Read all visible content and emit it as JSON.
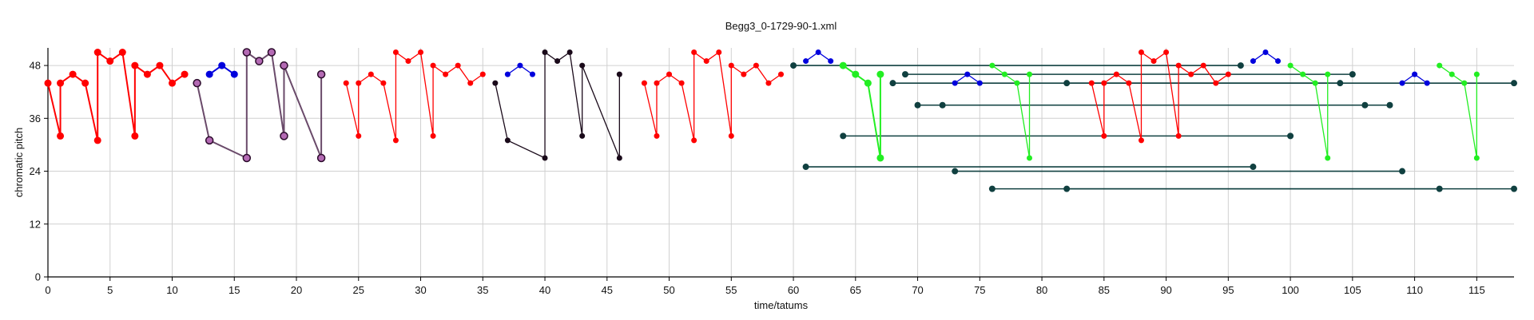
{
  "chart_data": {
    "type": "scatter",
    "title": "Begg3_0-1729-90-1.xml",
    "xlabel": "time/tatums",
    "ylabel": "chromatic pitch",
    "xlim": [
      0,
      118
    ],
    "ylim": [
      0,
      52
    ],
    "xticks": [
      0,
      5,
      10,
      15,
      20,
      25,
      30,
      35,
      40,
      45,
      50,
      55,
      60,
      65,
      70,
      75,
      80,
      85,
      90,
      95,
      100,
      105,
      110,
      115
    ],
    "yticks": [
      0,
      12,
      24,
      36,
      48
    ],
    "grid": true,
    "legend": "none",
    "colors": {
      "red": "#ff0000",
      "blue": "#0000dd",
      "purple": "#6a4a6a",
      "dark": "#1a0a1a",
      "green": "#22ee22",
      "teal": "#104040"
    },
    "series": [
      {
        "color": "red",
        "size": 9,
        "points": [
          [
            0,
            44
          ],
          [
            1,
            32
          ],
          [
            1,
            44
          ],
          [
            2,
            46
          ],
          [
            3,
            44
          ],
          [
            4,
            31
          ],
          [
            4,
            51
          ],
          [
            5,
            49
          ],
          [
            6,
            51
          ],
          [
            7,
            32
          ],
          [
            7,
            48
          ],
          [
            8,
            46
          ],
          [
            9,
            48
          ],
          [
            10,
            44
          ],
          [
            11,
            46
          ]
        ]
      },
      {
        "color": "blue",
        "size": 9,
        "points": [
          [
            13,
            46
          ],
          [
            14,
            48
          ],
          [
            15,
            46
          ]
        ]
      },
      {
        "color": "purple",
        "size": 9,
        "points": [
          [
            12,
            44
          ],
          [
            13,
            31
          ],
          [
            16,
            27
          ],
          [
            16,
            51
          ],
          [
            17,
            49
          ],
          [
            18,
            51
          ],
          [
            19,
            32
          ],
          [
            19,
            48
          ],
          [
            22,
            27
          ],
          [
            22,
            46
          ]
        ]
      },
      {
        "color": "red",
        "size": 7,
        "points": [
          [
            24,
            44
          ],
          [
            25,
            32
          ],
          [
            25,
            44
          ],
          [
            26,
            46
          ],
          [
            27,
            44
          ],
          [
            28,
            31
          ],
          [
            28,
            51
          ],
          [
            29,
            49
          ],
          [
            30,
            51
          ],
          [
            31,
            32
          ],
          [
            31,
            48
          ],
          [
            32,
            46
          ],
          [
            33,
            48
          ],
          [
            34,
            44
          ],
          [
            35,
            46
          ]
        ]
      },
      {
        "color": "blue",
        "size": 7,
        "points": [
          [
            37,
            46
          ],
          [
            38,
            48
          ],
          [
            39,
            46
          ]
        ]
      },
      {
        "color": "dark",
        "size": 7,
        "points": [
          [
            36,
            44
          ],
          [
            37,
            31
          ],
          [
            40,
            27
          ],
          [
            40,
            51
          ],
          [
            41,
            49
          ],
          [
            42,
            51
          ],
          [
            43,
            32
          ],
          [
            43,
            48
          ],
          [
            46,
            27
          ],
          [
            46,
            46
          ]
        ]
      },
      {
        "color": "red",
        "size": 7,
        "points": [
          [
            48,
            44
          ],
          [
            49,
            32
          ],
          [
            49,
            44
          ],
          [
            50,
            46
          ],
          [
            51,
            44
          ],
          [
            52,
            31
          ],
          [
            52,
            51
          ],
          [
            53,
            49
          ],
          [
            54,
            51
          ],
          [
            55,
            32
          ],
          [
            55,
            48
          ],
          [
            56,
            46
          ],
          [
            57,
            48
          ],
          [
            58,
            44
          ],
          [
            59,
            46
          ]
        ]
      },
      {
        "color": "blue",
        "size": 7,
        "points": [
          [
            61,
            49
          ],
          [
            62,
            51
          ],
          [
            63,
            49
          ]
        ]
      },
      {
        "color": "green",
        "size": 9,
        "points": [
          [
            64,
            48
          ],
          [
            65,
            46
          ],
          [
            66,
            44
          ],
          [
            67,
            27
          ],
          [
            67,
            46
          ]
        ]
      },
      {
        "color": "red",
        "size": 7,
        "points": [
          [
            84,
            44
          ],
          [
            85,
            32
          ],
          [
            85,
            44
          ],
          [
            86,
            46
          ],
          [
            87,
            44
          ],
          [
            88,
            31
          ],
          [
            88,
            51
          ],
          [
            89,
            49
          ],
          [
            90,
            51
          ],
          [
            91,
            32
          ],
          [
            91,
            48
          ],
          [
            92,
            46
          ],
          [
            93,
            48
          ],
          [
            94,
            44
          ],
          [
            95,
            46
          ]
        ]
      },
      {
        "color": "blue",
        "size": 7,
        "points": [
          [
            97,
            49
          ],
          [
            98,
            51
          ],
          [
            99,
            49
          ]
        ]
      },
      {
        "color": "blue",
        "size": 7,
        "points": [
          [
            73,
            44
          ],
          [
            74,
            46
          ],
          [
            75,
            44
          ]
        ]
      },
      {
        "color": "green",
        "size": 7,
        "points": [
          [
            76,
            48
          ],
          [
            77,
            46
          ],
          [
            78,
            44
          ],
          [
            79,
            27
          ],
          [
            79,
            46
          ]
        ]
      },
      {
        "color": "green",
        "size": 7,
        "points": [
          [
            100,
            48
          ],
          [
            101,
            46
          ],
          [
            102,
            44
          ],
          [
            103,
            27
          ],
          [
            103,
            46
          ]
        ]
      },
      {
        "color": "blue",
        "size": 7,
        "points": [
          [
            109,
            44
          ],
          [
            110,
            46
          ],
          [
            111,
            44
          ]
        ]
      },
      {
        "color": "green",
        "size": 7,
        "points": [
          [
            112,
            48
          ],
          [
            113,
            46
          ],
          [
            114,
            44
          ],
          [
            115,
            27
          ],
          [
            115,
            46
          ]
        ]
      }
    ],
    "segments": [
      {
        "color": "teal",
        "points": [
          [
            60,
            48
          ],
          [
            96,
            48
          ]
        ]
      },
      {
        "color": "teal",
        "points": [
          [
            69,
            46
          ],
          [
            105,
            46
          ]
        ]
      },
      {
        "color": "teal",
        "points": [
          [
            68,
            44
          ],
          [
            104,
            44
          ]
        ]
      },
      {
        "color": "teal",
        "points": [
          [
            82,
            44
          ],
          [
            118,
            44
          ]
        ]
      },
      {
        "color": "teal",
        "points": [
          [
            70,
            39
          ],
          [
            106,
            39
          ]
        ]
      },
      {
        "color": "teal",
        "points": [
          [
            72,
            39
          ],
          [
            108,
            39
          ]
        ]
      },
      {
        "color": "teal",
        "points": [
          [
            64,
            32
          ],
          [
            100,
            32
          ]
        ]
      },
      {
        "color": "teal",
        "points": [
          [
            61,
            25
          ],
          [
            97,
            25
          ]
        ]
      },
      {
        "color": "teal",
        "points": [
          [
            73,
            24
          ],
          [
            109,
            24
          ]
        ]
      },
      {
        "color": "teal",
        "points": [
          [
            76,
            20
          ],
          [
            112,
            20
          ]
        ]
      },
      {
        "color": "teal",
        "points": [
          [
            82,
            20
          ],
          [
            118,
            20
          ]
        ]
      }
    ]
  }
}
